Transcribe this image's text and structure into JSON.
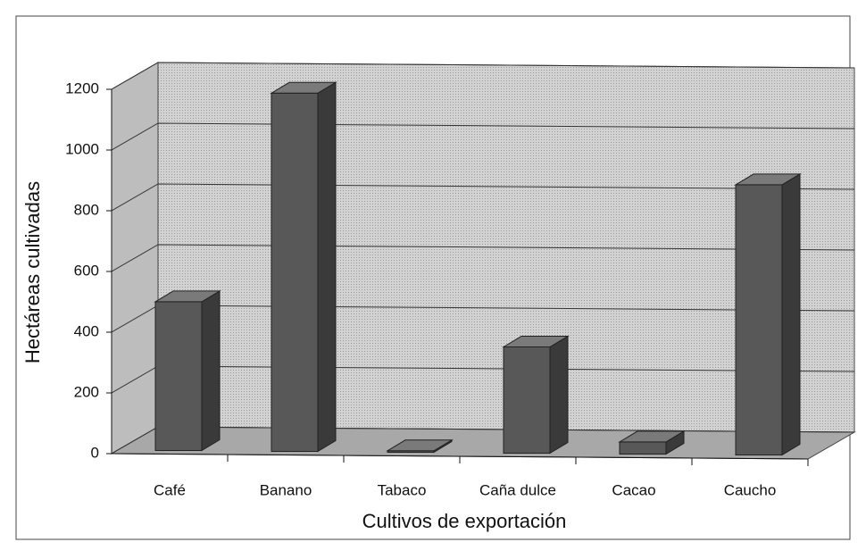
{
  "chart_data": {
    "type": "bar3d",
    "x_label": "Cultivos de exportación",
    "y_label": "Hectáreas cultivadas",
    "categories": [
      "Café",
      "Banano",
      "Tabaco",
      "Caña dulce",
      "Cacao",
      "Caucho"
    ],
    "values": [
      490,
      1180,
      5,
      350,
      40,
      890
    ],
    "color": "#585858",
    "ylim": [
      0,
      1200
    ],
    "yticks": [
      0,
      200,
      400,
      600,
      800,
      1000,
      1200
    ],
    "grid": true
  }
}
